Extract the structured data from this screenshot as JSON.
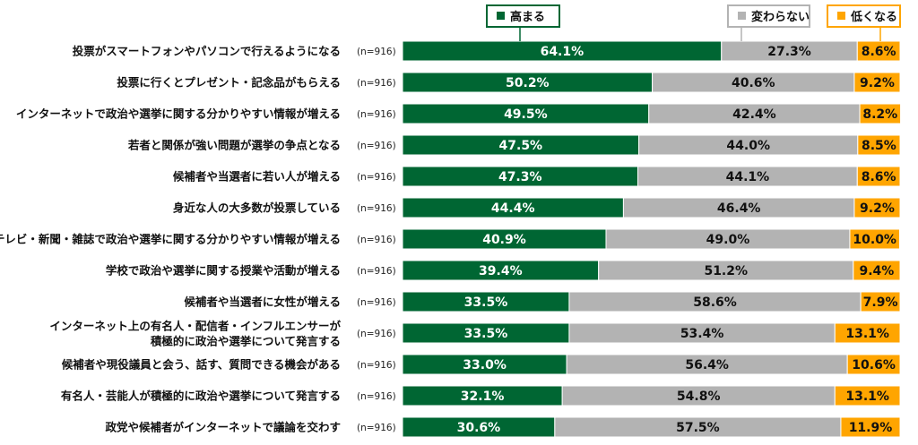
{
  "chart_data": {
    "type": "bar",
    "orientation": "horizontal",
    "stacked": true,
    "unit": "%",
    "xlim": [
      0,
      100
    ],
    "grid": false,
    "legend_placement": "top",
    "series": [
      {
        "name": "高まる",
        "color": "#006633",
        "values": [
          64.1,
          50.2,
          49.5,
          47.5,
          47.3,
          44.4,
          40.9,
          39.4,
          33.5,
          33.5,
          33.0,
          32.1,
          30.6
        ]
      },
      {
        "name": "変わらない",
        "color": "#b3b3b3",
        "values": [
          27.3,
          40.6,
          42.4,
          44.0,
          44.1,
          46.4,
          49.0,
          51.2,
          58.6,
          53.4,
          56.4,
          54.8,
          57.5
        ]
      },
      {
        "name": "低くなる",
        "color": "#ffa500",
        "values": [
          8.6,
          9.2,
          8.2,
          8.5,
          8.6,
          9.2,
          10.0,
          9.4,
          7.9,
          13.1,
          10.6,
          13.1,
          11.9
        ]
      }
    ],
    "categories": [
      [
        "投票がスマートフォンやパソコンで行えるようになる"
      ],
      [
        "投票に行くとプレゼント・記念品がもらえる"
      ],
      [
        "インターネットで政治や選挙に関する分かりやすい情報が増える"
      ],
      [
        "若者と関係が強い問題が選挙の争点となる"
      ],
      [
        "候補者や当選者に若い人が増える"
      ],
      [
        "身近な人の大多数が投票している"
      ],
      [
        "テレビ・新聞・雑誌で政治や選挙に関する分かりやすい情報が増える"
      ],
      [
        "学校で政治や選挙に関する授業や活動が増える"
      ],
      [
        "候補者や当選者に女性が増える"
      ],
      [
        "インターネット上の有名人・配信者・インフルエンサーが",
        "積極的に政治や選挙について発言する"
      ],
      [
        "候補者や現役議員と会う、話す、質問できる機会がある"
      ],
      [
        "有名人・芸能人が積極的に政治や選挙について発言する"
      ],
      [
        "政党や候補者がインターネットで議論を交わす"
      ]
    ],
    "sample_sizes": [
      "(n=916)",
      "(n=916)",
      "(n=916)",
      "(n=916)",
      "(n=916)",
      "(n=916)",
      "(n=916)",
      "(n=916)",
      "(n=916)",
      "(n=916)",
      "(n=916)",
      "(n=916)",
      "(n=916)"
    ]
  }
}
